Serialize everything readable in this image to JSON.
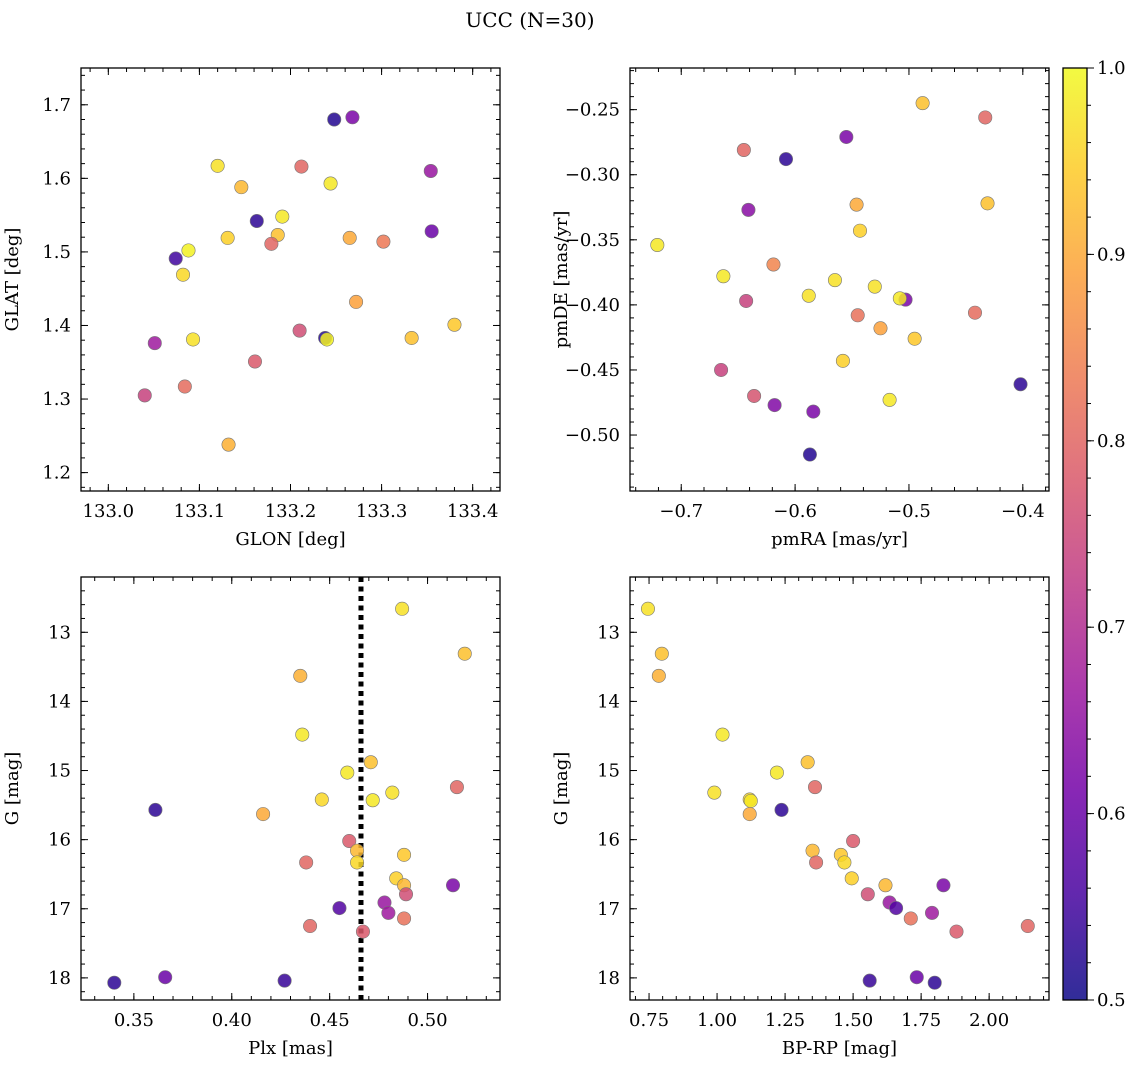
{
  "figure": {
    "title": "UCC (N=30)"
  },
  "colors": {
    "colormap": [
      "#0d0887",
      "#46039f",
      "#7201a8",
      "#9c179e",
      "#bd3786",
      "#d8576b",
      "#ed7953",
      "#fb9f3a",
      "#fdca26",
      "#f0f921"
    ],
    "vline": "#000000"
  },
  "colorbar": {
    "range": [
      0.5,
      1.0
    ],
    "ticks": [
      0.5,
      0.6,
      0.7,
      0.8,
      0.9,
      1.0
    ],
    "tick_labels": [
      "0.5",
      "0.6",
      "0.7",
      "0.8",
      "0.9",
      "1.0"
    ]
  },
  "chart_data": [
    {
      "type": "scatter",
      "xlabel": "GLON [deg]",
      "ylabel": "GLAT [deg]",
      "xlim": [
        132.97,
        133.43
      ],
      "ylim": [
        1.175,
        1.75
      ],
      "xticks": [
        133.0,
        133.1,
        133.2,
        133.3,
        133.4
      ],
      "xtick_labels": [
        "133.0",
        "133.1",
        "133.2",
        "133.3",
        "133.4"
      ],
      "yticks": [
        1.2,
        1.3,
        1.4,
        1.5,
        1.6,
        1.7
      ],
      "ytick_labels": [
        "1.2",
        "1.3",
        "1.4",
        "1.5",
        "1.6",
        "1.7"
      ],
      "y_inverted": false,
      "points": [
        {
          "x": 133.248,
          "y": 1.68,
          "c": 0.52
        },
        {
          "x": 133.268,
          "y": 1.683,
          "c": 0.62
        },
        {
          "x": 133.12,
          "y": 1.617,
          "c": 0.97
        },
        {
          "x": 133.212,
          "y": 1.616,
          "c": 0.8
        },
        {
          "x": 133.354,
          "y": 1.61,
          "c": 0.66
        },
        {
          "x": 133.146,
          "y": 1.588,
          "c": 0.92
        },
        {
          "x": 133.244,
          "y": 1.593,
          "c": 0.98
        },
        {
          "x": 133.163,
          "y": 1.542,
          "c": 0.53
        },
        {
          "x": 133.191,
          "y": 1.548,
          "c": 0.98
        },
        {
          "x": 133.355,
          "y": 1.528,
          "c": 0.6
        },
        {
          "x": 133.131,
          "y": 1.519,
          "c": 0.95
        },
        {
          "x": 133.186,
          "y": 1.523,
          "c": 0.93
        },
        {
          "x": 133.265,
          "y": 1.519,
          "c": 0.9
        },
        {
          "x": 133.302,
          "y": 1.514,
          "c": 0.83
        },
        {
          "x": 133.179,
          "y": 1.511,
          "c": 0.8
        },
        {
          "x": 133.088,
          "y": 1.502,
          "c": 0.99
        },
        {
          "x": 133.074,
          "y": 1.491,
          "c": 0.55
        },
        {
          "x": 133.082,
          "y": 1.469,
          "c": 0.96
        },
        {
          "x": 133.272,
          "y": 1.432,
          "c": 0.89
        },
        {
          "x": 133.38,
          "y": 1.401,
          "c": 0.94
        },
        {
          "x": 133.21,
          "y": 1.393,
          "c": 0.76
        },
        {
          "x": 133.238,
          "y": 1.383,
          "c": 0.52
        },
        {
          "x": 133.24,
          "y": 1.381,
          "c": 0.99
        },
        {
          "x": 133.333,
          "y": 1.383,
          "c": 0.93
        },
        {
          "x": 133.093,
          "y": 1.381,
          "c": 0.97
        },
        {
          "x": 133.051,
          "y": 1.376,
          "c": 0.67
        },
        {
          "x": 133.161,
          "y": 1.351,
          "c": 0.78
        },
        {
          "x": 133.084,
          "y": 1.317,
          "c": 0.81
        },
        {
          "x": 133.04,
          "y": 1.305,
          "c": 0.74
        },
        {
          "x": 133.132,
          "y": 1.238,
          "c": 0.91
        }
      ]
    },
    {
      "type": "scatter",
      "xlabel": "pmRA [mas/yr]",
      "ylabel": "pmDE [mas/yr]",
      "xlim": [
        -0.745,
        -0.377
      ],
      "ylim": [
        -0.543,
        -0.218
      ],
      "xticks": [
        -0.7,
        -0.6,
        -0.5,
        -0.4
      ],
      "xtick_labels": [
        "−0.7",
        "−0.6",
        "−0.5",
        "−0.4"
      ],
      "yticks": [
        -0.5,
        -0.45,
        -0.4,
        -0.35,
        -0.3,
        -0.25
      ],
      "ytick_labels": [
        "−0.50",
        "−0.45",
        "−0.40",
        "−0.35",
        "−0.30",
        "−0.25"
      ],
      "y_inverted": false,
      "points": [
        {
          "x": -0.488,
          "y": -0.245,
          "c": 0.93
        },
        {
          "x": -0.433,
          "y": -0.256,
          "c": 0.8
        },
        {
          "x": -0.555,
          "y": -0.271,
          "c": 0.62
        },
        {
          "x": -0.645,
          "y": -0.281,
          "c": 0.8
        },
        {
          "x": -0.608,
          "y": -0.288,
          "c": 0.53
        },
        {
          "x": -0.546,
          "y": -0.323,
          "c": 0.9
        },
        {
          "x": -0.431,
          "y": -0.322,
          "c": 0.93
        },
        {
          "x": -0.641,
          "y": -0.327,
          "c": 0.64
        },
        {
          "x": -0.543,
          "y": -0.343,
          "c": 0.95
        },
        {
          "x": -0.721,
          "y": -0.354,
          "c": 0.98
        },
        {
          "x": -0.619,
          "y": -0.369,
          "c": 0.85
        },
        {
          "x": -0.663,
          "y": -0.378,
          "c": 0.98
        },
        {
          "x": -0.565,
          "y": -0.381,
          "c": 0.97
        },
        {
          "x": -0.53,
          "y": -0.386,
          "c": 0.97
        },
        {
          "x": -0.588,
          "y": -0.393,
          "c": 0.97
        },
        {
          "x": -0.503,
          "y": -0.396,
          "c": 0.62
        },
        {
          "x": -0.508,
          "y": -0.395,
          "c": 0.98
        },
        {
          "x": -0.643,
          "y": -0.397,
          "c": 0.74
        },
        {
          "x": -0.545,
          "y": -0.408,
          "c": 0.82
        },
        {
          "x": -0.442,
          "y": -0.406,
          "c": 0.81
        },
        {
          "x": -0.525,
          "y": -0.418,
          "c": 0.89
        },
        {
          "x": -0.495,
          "y": -0.426,
          "c": 0.94
        },
        {
          "x": -0.558,
          "y": -0.443,
          "c": 0.95
        },
        {
          "x": -0.665,
          "y": -0.45,
          "c": 0.74
        },
        {
          "x": -0.402,
          "y": -0.461,
          "c": 0.53
        },
        {
          "x": -0.636,
          "y": -0.47,
          "c": 0.77
        },
        {
          "x": -0.517,
          "y": -0.473,
          "c": 0.98
        },
        {
          "x": -0.618,
          "y": -0.477,
          "c": 0.63
        },
        {
          "x": -0.584,
          "y": -0.482,
          "c": 0.62
        },
        {
          "x": -0.587,
          "y": -0.515,
          "c": 0.52
        }
      ]
    },
    {
      "type": "scatter",
      "xlabel": "Plx [mas]",
      "ylabel": "G [mag]",
      "xlim": [
        0.323,
        0.537
      ],
      "ylim": [
        18.32,
        12.2
      ],
      "xticks": [
        0.35,
        0.4,
        0.45,
        0.5
      ],
      "xtick_labels": [
        "0.35",
        "0.40",
        "0.45",
        "0.50"
      ],
      "yticks": [
        13,
        14,
        15,
        16,
        17,
        18
      ],
      "ytick_labels": [
        "13",
        "14",
        "15",
        "16",
        "17",
        "18"
      ],
      "y_inverted": true,
      "vline": 0.466,
      "points": [
        {
          "x": 0.487,
          "y": 12.66,
          "c": 0.97
        },
        {
          "x": 0.519,
          "y": 13.31,
          "c": 0.93
        },
        {
          "x": 0.435,
          "y": 13.63,
          "c": 0.91
        },
        {
          "x": 0.436,
          "y": 14.48,
          "c": 0.98
        },
        {
          "x": 0.471,
          "y": 14.88,
          "c": 0.93
        },
        {
          "x": 0.459,
          "y": 15.03,
          "c": 0.98
        },
        {
          "x": 0.482,
          "y": 15.32,
          "c": 0.97
        },
        {
          "x": 0.515,
          "y": 15.24,
          "c": 0.8
        },
        {
          "x": 0.446,
          "y": 15.42,
          "c": 0.96
        },
        {
          "x": 0.472,
          "y": 15.43,
          "c": 0.98
        },
        {
          "x": 0.361,
          "y": 15.57,
          "c": 0.53
        },
        {
          "x": 0.416,
          "y": 15.63,
          "c": 0.9
        },
        {
          "x": 0.46,
          "y": 16.02,
          "c": 0.78
        },
        {
          "x": 0.464,
          "y": 16.16,
          "c": 0.92
        },
        {
          "x": 0.488,
          "y": 16.22,
          "c": 0.94
        },
        {
          "x": 0.464,
          "y": 16.33,
          "c": 0.96
        },
        {
          "x": 0.438,
          "y": 16.33,
          "c": 0.8
        },
        {
          "x": 0.484,
          "y": 16.56,
          "c": 0.95
        },
        {
          "x": 0.488,
          "y": 16.66,
          "c": 0.92
        },
        {
          "x": 0.513,
          "y": 16.66,
          "c": 0.62
        },
        {
          "x": 0.489,
          "y": 16.79,
          "c": 0.76
        },
        {
          "x": 0.478,
          "y": 16.91,
          "c": 0.66
        },
        {
          "x": 0.455,
          "y": 16.99,
          "c": 0.57
        },
        {
          "x": 0.48,
          "y": 17.06,
          "c": 0.67
        },
        {
          "x": 0.488,
          "y": 17.14,
          "c": 0.82
        },
        {
          "x": 0.44,
          "y": 17.25,
          "c": 0.8
        },
        {
          "x": 0.467,
          "y": 17.33,
          "c": 0.78
        },
        {
          "x": 0.366,
          "y": 17.99,
          "c": 0.6
        },
        {
          "x": 0.427,
          "y": 18.04,
          "c": 0.54
        },
        {
          "x": 0.34,
          "y": 18.07,
          "c": 0.53
        }
      ]
    },
    {
      "type": "scatter",
      "xlabel": "BP-RP [mag]",
      "ylabel": "G [mag]",
      "xlim": [
        0.68,
        2.22
      ],
      "ylim": [
        18.32,
        12.2
      ],
      "xticks": [
        0.75,
        1.0,
        1.25,
        1.5,
        1.75,
        2.0
      ],
      "xtick_labels": [
        "0.75",
        "1.00",
        "1.25",
        "1.50",
        "1.75",
        "2.00"
      ],
      "yticks": [
        13,
        14,
        15,
        16,
        17,
        18
      ],
      "ytick_labels": [
        "13",
        "14",
        "15",
        "16",
        "17",
        "18"
      ],
      "y_inverted": true,
      "points": [
        {
          "x": 0.746,
          "y": 12.66,
          "c": 0.97
        },
        {
          "x": 0.797,
          "y": 13.31,
          "c": 0.93
        },
        {
          "x": 0.786,
          "y": 13.63,
          "c": 0.91
        },
        {
          "x": 1.02,
          "y": 14.48,
          "c": 0.98
        },
        {
          "x": 1.333,
          "y": 14.88,
          "c": 0.93
        },
        {
          "x": 1.22,
          "y": 15.03,
          "c": 0.98
        },
        {
          "x": 0.99,
          "y": 15.32,
          "c": 0.97
        },
        {
          "x": 1.36,
          "y": 15.24,
          "c": 0.8
        },
        {
          "x": 1.12,
          "y": 15.42,
          "c": 0.96
        },
        {
          "x": 1.124,
          "y": 15.44,
          "c": 0.98
        },
        {
          "x": 1.237,
          "y": 15.57,
          "c": 0.53
        },
        {
          "x": 1.12,
          "y": 15.63,
          "c": 0.9
        },
        {
          "x": 1.5,
          "y": 16.02,
          "c": 0.78
        },
        {
          "x": 1.351,
          "y": 16.16,
          "c": 0.92
        },
        {
          "x": 1.455,
          "y": 16.22,
          "c": 0.94
        },
        {
          "x": 1.468,
          "y": 16.33,
          "c": 0.96
        },
        {
          "x": 1.364,
          "y": 16.33,
          "c": 0.8
        },
        {
          "x": 1.495,
          "y": 16.56,
          "c": 0.95
        },
        {
          "x": 1.619,
          "y": 16.66,
          "c": 0.92
        },
        {
          "x": 1.832,
          "y": 16.66,
          "c": 0.62
        },
        {
          "x": 1.554,
          "y": 16.79,
          "c": 0.76
        },
        {
          "x": 1.634,
          "y": 16.91,
          "c": 0.66
        },
        {
          "x": 1.658,
          "y": 16.99,
          "c": 0.57
        },
        {
          "x": 1.79,
          "y": 17.06,
          "c": 0.67
        },
        {
          "x": 1.712,
          "y": 17.14,
          "c": 0.82
        },
        {
          "x": 2.142,
          "y": 17.25,
          "c": 0.8
        },
        {
          "x": 1.88,
          "y": 17.33,
          "c": 0.78
        },
        {
          "x": 1.734,
          "y": 17.99,
          "c": 0.6
        },
        {
          "x": 1.561,
          "y": 18.04,
          "c": 0.54
        },
        {
          "x": 1.8,
          "y": 18.07,
          "c": 0.53
        }
      ]
    }
  ]
}
